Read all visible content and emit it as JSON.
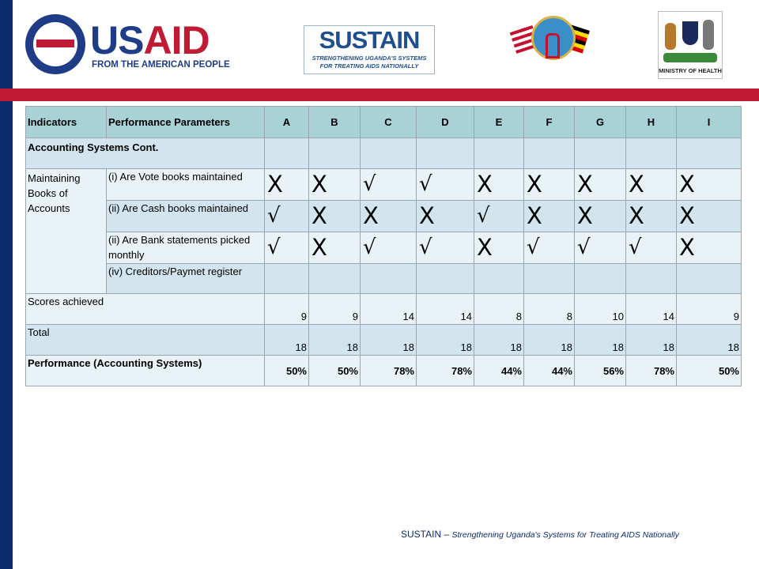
{
  "header": {
    "usaid_word_1": "US",
    "usaid_word_2": "AID",
    "usaid_tagline": "FROM THE AMERICAN PEOPLE",
    "sustain_word": "SUSTAIN",
    "sustain_tagline_1": "STRENGTHENING UGANDA'S SYSTEMS",
    "sustain_tagline_2": "FOR TREATING AIDS NATIONALLY",
    "moh_label": "MINISTRY OF HEALTH"
  },
  "table": {
    "headers": [
      "Indicators",
      "Performance Parameters",
      "A",
      "B",
      "C",
      "D",
      "E",
      "F",
      "G",
      "H",
      "I"
    ],
    "section_title": "Accounting Systems Cont.",
    "indicator": "Maintaining Books of Accounts",
    "parameters": [
      {
        "label": "(i) Are Vote books maintained",
        "marks": [
          "X",
          "X",
          "√",
          "√",
          "X",
          "X",
          "X",
          "X",
          "X"
        ]
      },
      {
        "label": "(ii) Are Cash books maintained",
        "marks": [
          "√",
          "X",
          "X",
          "X",
          "√",
          "X",
          "X",
          "X",
          "X"
        ]
      },
      {
        "label": "(ii) Are Bank statements picked monthly",
        "marks": [
          "√",
          "X",
          "√",
          "√",
          "X",
          "√",
          "√",
          "√",
          "X"
        ]
      },
      {
        "label": "(iv) Creditors/Paymet register",
        "marks": [
          "",
          "",
          "",
          "",
          "",
          "",
          "",
          "",
          ""
        ]
      }
    ],
    "scores_label": "Scores achieved",
    "scores": [
      "9",
      "9",
      "14",
      "14",
      "8",
      "8",
      "10",
      "14",
      "9"
    ],
    "total_label": "Total",
    "totals": [
      "18",
      "18",
      "18",
      "18",
      "18",
      "18",
      "18",
      "18",
      "18"
    ],
    "performance_label": "Performance (Accounting Systems)",
    "performance": [
      "50%",
      "50%",
      "78%",
      "78%",
      "44%",
      "44%",
      "56%",
      "78%",
      "50%"
    ]
  },
  "footer": {
    "brand": "SUSTAIN",
    "dash": " – ",
    "tagline": "Strengthening Uganda's Systems for Treating AIDS Nationally"
  }
}
